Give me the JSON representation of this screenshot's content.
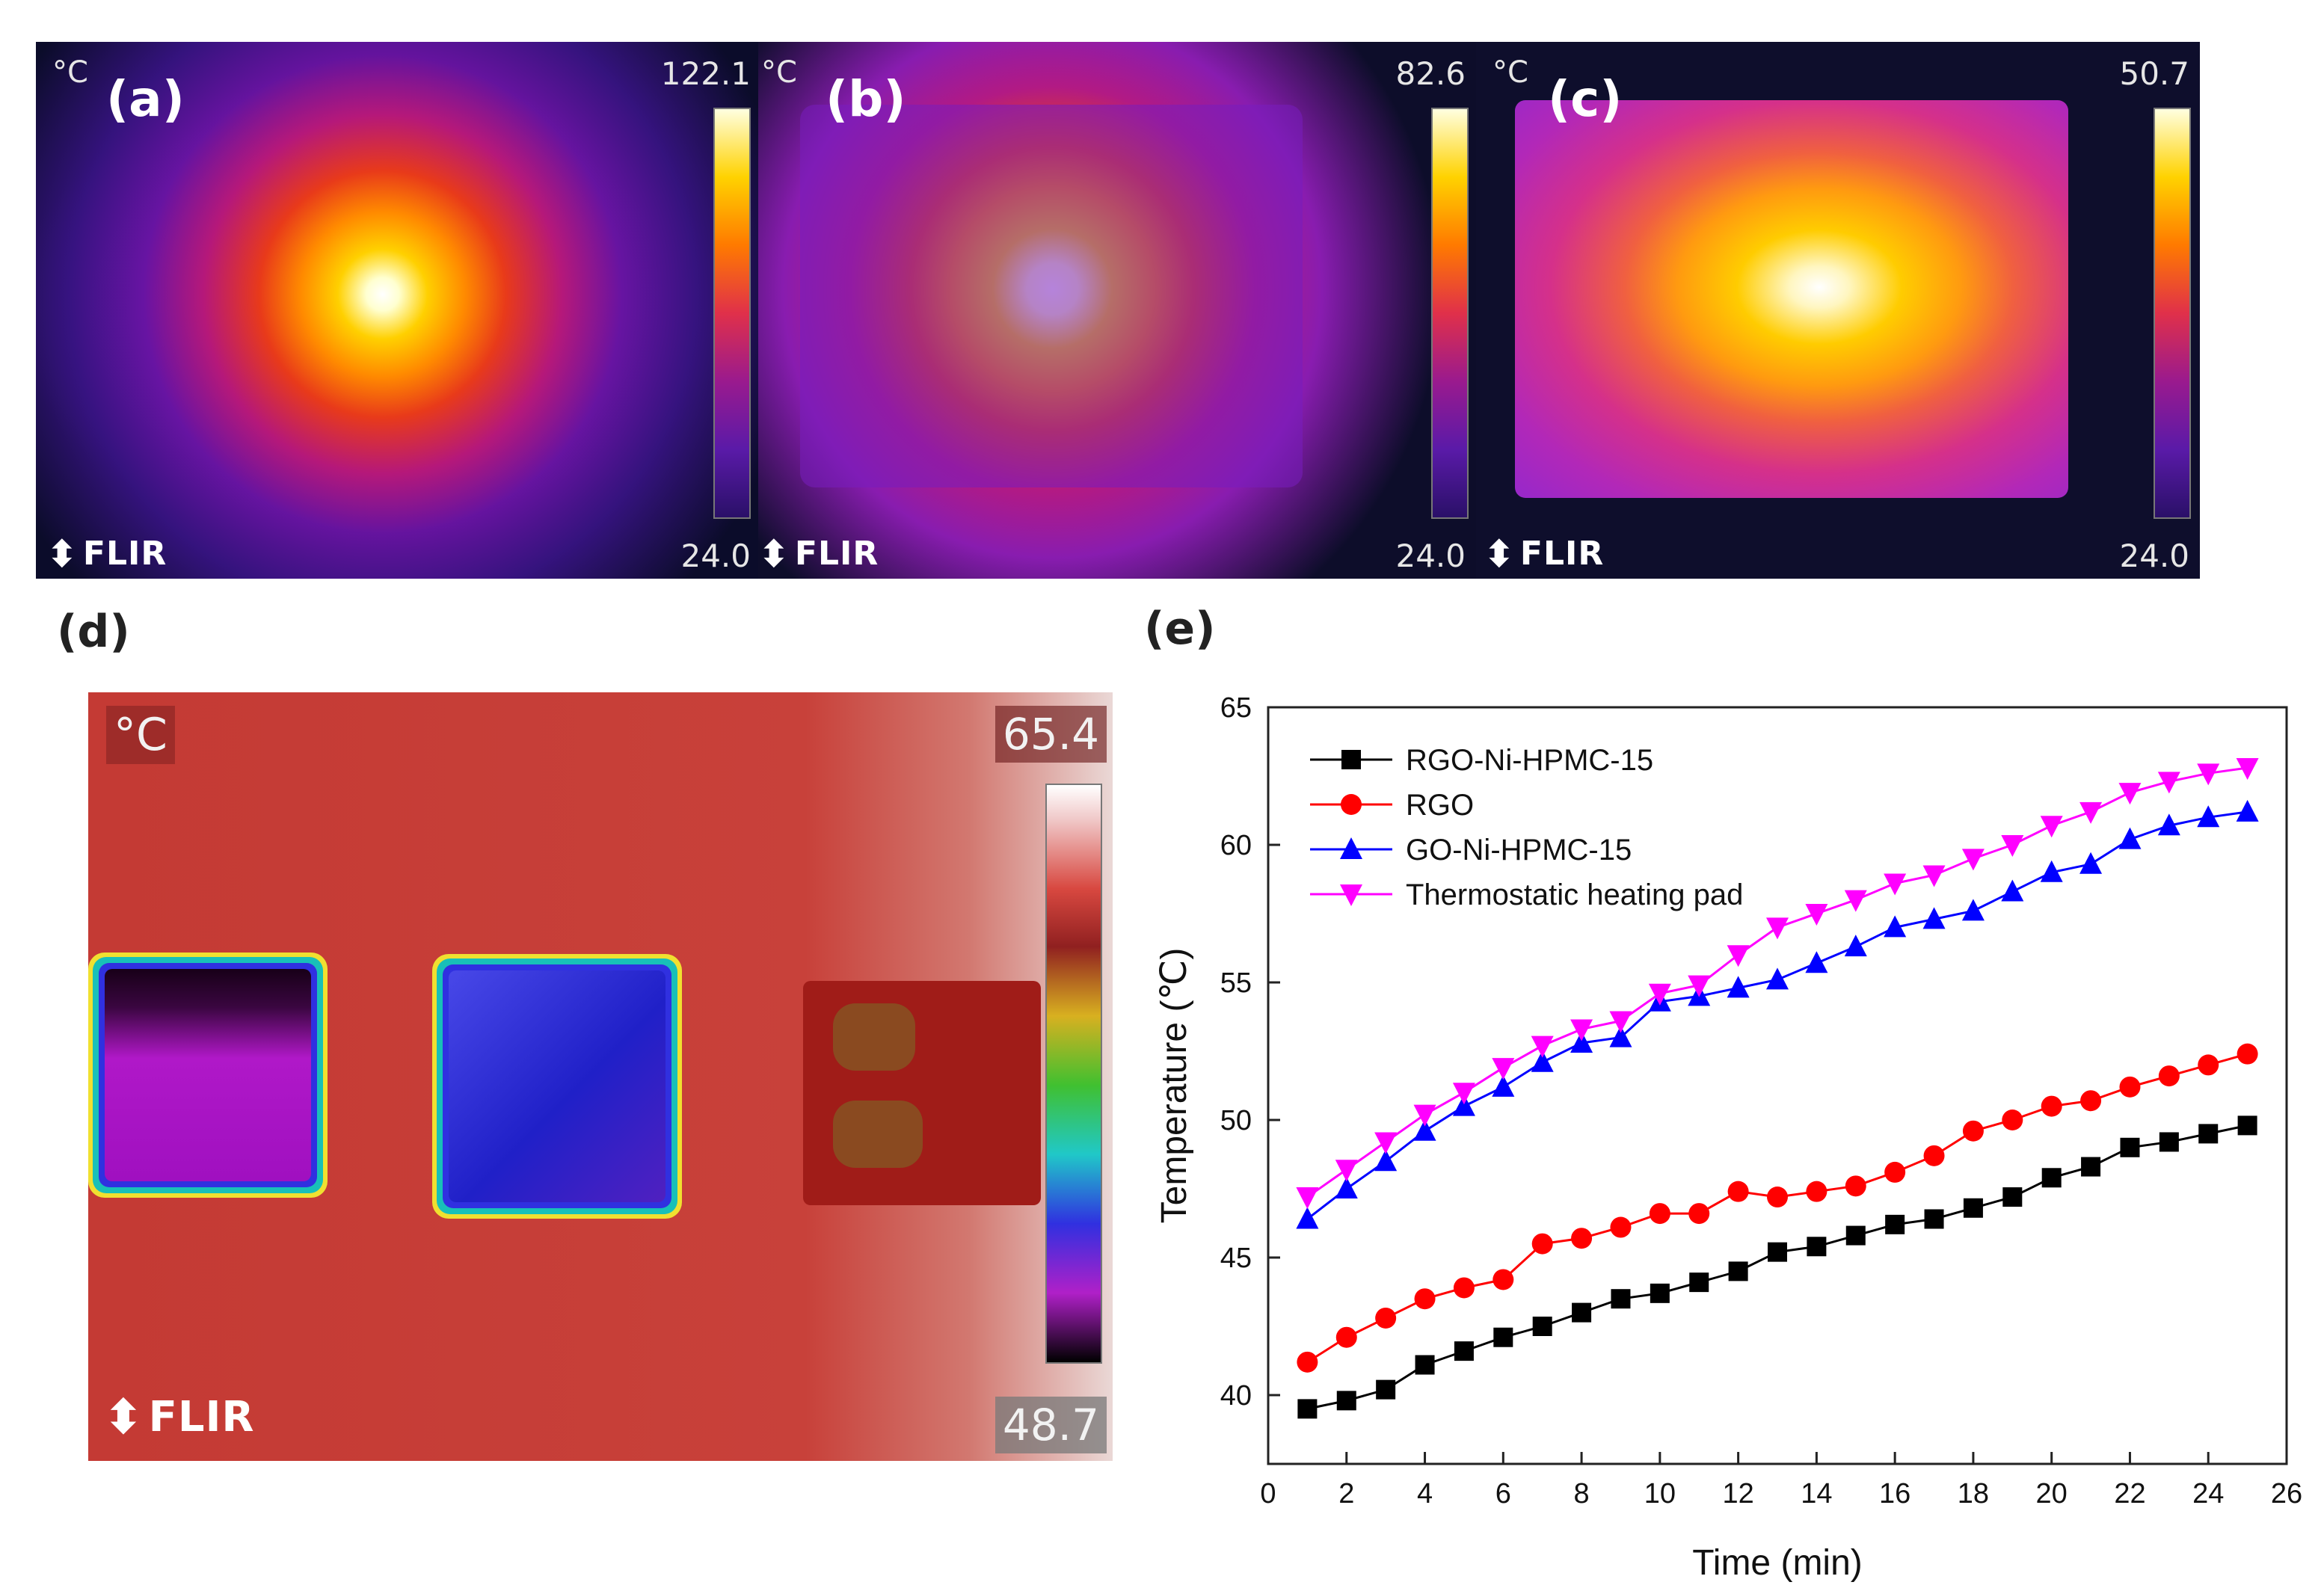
{
  "thermal_images": [
    {
      "label": "(a)",
      "unit": "°C",
      "max": "122.1",
      "min": "24.0",
      "logo": "FLIR"
    },
    {
      "label": "(b)",
      "unit": "°C",
      "max": "82.6",
      "min": "24.0",
      "logo": "FLIR"
    },
    {
      "label": "(c)",
      "unit": "°C",
      "max": "50.7",
      "min": "24.0",
      "logo": "FLIR"
    }
  ],
  "thermal_d": {
    "label": "(d)",
    "unit": "°C",
    "max": "65.4",
    "min": "48.7",
    "logo": "FLIR"
  },
  "chart_label": "(e)",
  "chart_data": {
    "type": "line",
    "title": "",
    "xlabel": "Time (min)",
    "ylabel": "Temperature (℃)",
    "xlim": [
      0,
      26
    ],
    "ylim": [
      37.5,
      65
    ],
    "xticks": [
      0,
      2,
      4,
      6,
      8,
      10,
      12,
      14,
      16,
      18,
      20,
      22,
      24,
      26
    ],
    "yticks": [
      40,
      45,
      50,
      55,
      60,
      65
    ],
    "legend_position": "top-left",
    "x": [
      1,
      2,
      3,
      4,
      5,
      6,
      7,
      8,
      9,
      10,
      11,
      12,
      13,
      14,
      15,
      16,
      17,
      18,
      19,
      20,
      21,
      22,
      23,
      24,
      25
    ],
    "series": [
      {
        "name": "RGO-Ni-HPMC-15",
        "color": "#000000",
        "marker": "square",
        "values": [
          39.5,
          39.8,
          40.2,
          41.1,
          41.6,
          42.1,
          42.5,
          43.0,
          43.5,
          43.7,
          44.1,
          44.5,
          45.2,
          45.4,
          45.8,
          46.2,
          46.4,
          46.8,
          47.2,
          47.9,
          48.3,
          49.0,
          49.2,
          49.5,
          49.8
        ]
      },
      {
        "name": "RGO",
        "color": "#ff0000",
        "marker": "circle",
        "values": [
          41.2,
          42.1,
          42.8,
          43.5,
          43.9,
          44.2,
          45.5,
          45.7,
          46.1,
          46.6,
          46.6,
          47.4,
          47.2,
          47.4,
          47.6,
          48.1,
          48.7,
          49.6,
          50.0,
          50.5,
          50.7,
          51.2,
          51.6,
          52.0,
          52.4
        ]
      },
      {
        "name": "GO-Ni-HPMC-15",
        "color": "#0000ff",
        "marker": "triangle-up",
        "values": [
          46.4,
          47.5,
          48.5,
          49.6,
          50.5,
          51.2,
          52.1,
          52.8,
          53.0,
          54.3,
          54.5,
          54.8,
          55.1,
          55.7,
          56.3,
          57.0,
          57.3,
          57.6,
          58.3,
          59.0,
          59.3,
          60.2,
          60.7,
          61.0,
          61.2
        ]
      },
      {
        "name": "Thermostatic heating pad",
        "color": "#ff00ff",
        "marker": "triangle-down",
        "values": [
          47.2,
          48.2,
          49.2,
          50.2,
          51.0,
          51.9,
          52.7,
          53.3,
          53.6,
          54.6,
          54.9,
          56.0,
          57.0,
          57.5,
          58.0,
          58.6,
          58.9,
          59.5,
          60.0,
          60.7,
          61.2,
          61.9,
          62.3,
          62.6,
          62.8
        ]
      }
    ]
  }
}
